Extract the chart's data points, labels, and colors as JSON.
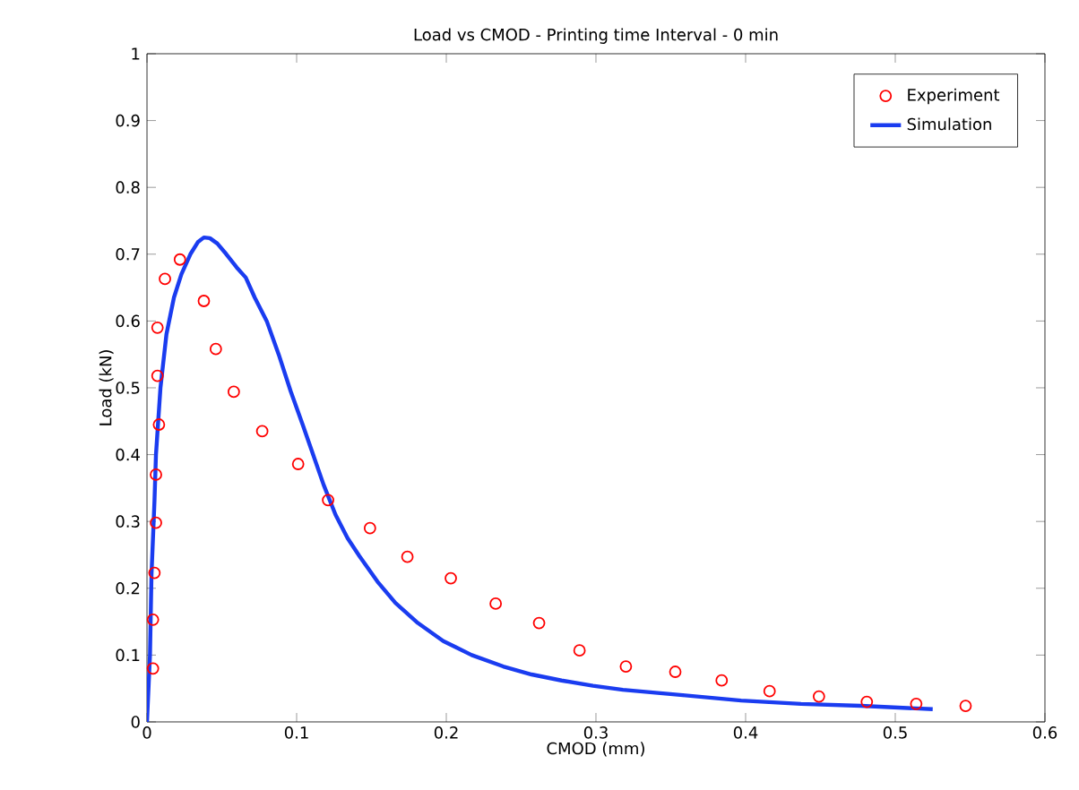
{
  "chart_data": {
    "type": "scatter",
    "title": "Load vs CMOD - Printing time Interval - 0 min",
    "xlabel": "CMOD (mm)",
    "ylabel": "Load (kN)",
    "xlim": [
      0,
      0.6
    ],
    "ylim": [
      0,
      1
    ],
    "xticks": [
      0,
      0.1,
      0.2,
      0.3,
      0.4,
      0.5,
      0.6
    ],
    "yticks": [
      0,
      0.1,
      0.2,
      0.3,
      0.4,
      0.5,
      0.6,
      0.7,
      0.8,
      0.9,
      1
    ],
    "grid": false,
    "legend": "top right",
    "series": [
      {
        "name": "Experiment",
        "type": "scatter",
        "marker": "circle",
        "color": "#ff0000",
        "x": [
          0.004,
          0.004,
          0.005,
          0.006,
          0.006,
          0.008,
          0.007,
          0.007,
          0.012,
          0.022,
          0.038,
          0.046,
          0.058,
          0.077,
          0.101,
          0.121,
          0.149,
          0.174,
          0.203,
          0.233,
          0.262,
          0.289,
          0.32,
          0.353,
          0.384,
          0.416,
          0.449,
          0.481,
          0.514,
          0.547
        ],
        "values": [
          0.08,
          0.153,
          0.223,
          0.298,
          0.37,
          0.445,
          0.518,
          0.59,
          0.663,
          0.692,
          0.63,
          0.558,
          0.494,
          0.435,
          0.386,
          0.332,
          0.29,
          0.247,
          0.215,
          0.177,
          0.148,
          0.107,
          0.083,
          0.075,
          0.062,
          0.046,
          0.038,
          0.03,
          0.027,
          0.024
        ]
      },
      {
        "name": "Simulation",
        "type": "line",
        "line_style": "solid",
        "color": "#1a3cf0",
        "x": [
          0,
          0.002,
          0.003,
          0.005,
          0.006,
          0.009,
          0.013,
          0.018,
          0.023,
          0.029,
          0.034,
          0.038,
          0.042,
          0.047,
          0.053,
          0.06,
          0.066,
          0.072,
          0.08,
          0.088,
          0.096,
          0.104,
          0.111,
          0.118,
          0.126,
          0.134,
          0.142,
          0.154,
          0.166,
          0.181,
          0.198,
          0.217,
          0.238,
          0.257,
          0.277,
          0.298,
          0.318,
          0.358,
          0.397,
          0.437,
          0.477,
          0.525
        ],
        "values": [
          0,
          0.1,
          0.22,
          0.33,
          0.4,
          0.5,
          0.58,
          0.635,
          0.67,
          0.7,
          0.718,
          0.725,
          0.724,
          0.716,
          0.7,
          0.68,
          0.665,
          0.635,
          0.6,
          0.55,
          0.495,
          0.445,
          0.4,
          0.355,
          0.31,
          0.275,
          0.248,
          0.21,
          0.178,
          0.148,
          0.121,
          0.1,
          0.083,
          0.071,
          0.062,
          0.054,
          0.048,
          0.04,
          0.032,
          0.027,
          0.024,
          0.019
        ]
      }
    ]
  }
}
